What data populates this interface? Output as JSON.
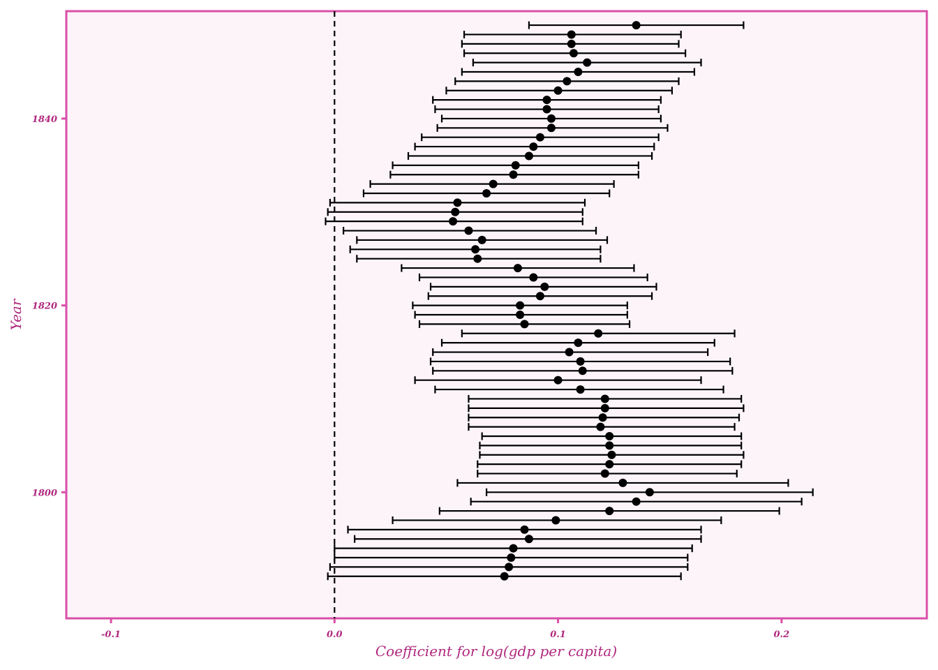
{
  "colors": {
    "panel_border": "#d94fa8",
    "panel_fill": "#fcf4f9",
    "axis_text": "#b0287e",
    "marks": "#000000"
  },
  "chart_data": {
    "type": "scatter",
    "subtype": "coefficient-plot-with-confidence-intervals",
    "xlabel": "Coefficient for log(gdp per capita)",
    "ylabel": "Year",
    "xlim": [
      -0.12,
      0.265
    ],
    "ylim": [
      1786.5,
      1851.5
    ],
    "x_ticks": [
      -0.1,
      0.0,
      0.1,
      0.2
    ],
    "x_tick_labels": [
      "-0.1",
      "0.0",
      "0.1",
      "0.2"
    ],
    "y_ticks": [
      1800,
      1820,
      1840
    ],
    "y_tick_labels": [
      "1800",
      "1820",
      "1840"
    ],
    "reference_line": {
      "x": 0,
      "style": "dashed"
    },
    "grid": false,
    "legend": "none",
    "points": [
      {
        "year": 1850,
        "estimate": 0.135,
        "lower": 0.087,
        "upper": 0.183
      },
      {
        "year": 1849,
        "estimate": 0.106,
        "lower": 0.058,
        "upper": 0.155
      },
      {
        "year": 1848,
        "estimate": 0.106,
        "lower": 0.057,
        "upper": 0.154
      },
      {
        "year": 1847,
        "estimate": 0.107,
        "lower": 0.058,
        "upper": 0.157
      },
      {
        "year": 1846,
        "estimate": 0.113,
        "lower": 0.062,
        "upper": 0.164
      },
      {
        "year": 1845,
        "estimate": 0.109,
        "lower": 0.057,
        "upper": 0.161
      },
      {
        "year": 1844,
        "estimate": 0.104,
        "lower": 0.054,
        "upper": 0.154
      },
      {
        "year": 1843,
        "estimate": 0.1,
        "lower": 0.05,
        "upper": 0.151
      },
      {
        "year": 1842,
        "estimate": 0.095,
        "lower": 0.044,
        "upper": 0.146
      },
      {
        "year": 1841,
        "estimate": 0.095,
        "lower": 0.045,
        "upper": 0.145
      },
      {
        "year": 1840,
        "estimate": 0.097,
        "lower": 0.048,
        "upper": 0.146
      },
      {
        "year": 1839,
        "estimate": 0.097,
        "lower": 0.046,
        "upper": 0.149
      },
      {
        "year": 1838,
        "estimate": 0.092,
        "lower": 0.039,
        "upper": 0.145
      },
      {
        "year": 1837,
        "estimate": 0.089,
        "lower": 0.036,
        "upper": 0.143
      },
      {
        "year": 1836,
        "estimate": 0.087,
        "lower": 0.033,
        "upper": 0.142
      },
      {
        "year": 1835,
        "estimate": 0.081,
        "lower": 0.026,
        "upper": 0.136
      },
      {
        "year": 1834,
        "estimate": 0.08,
        "lower": 0.025,
        "upper": 0.136
      },
      {
        "year": 1833,
        "estimate": 0.071,
        "lower": 0.016,
        "upper": 0.125
      },
      {
        "year": 1832,
        "estimate": 0.068,
        "lower": 0.013,
        "upper": 0.123
      },
      {
        "year": 1831,
        "estimate": 0.055,
        "lower": -0.002,
        "upper": 0.112
      },
      {
        "year": 1830,
        "estimate": 0.054,
        "lower": -0.003,
        "upper": 0.111
      },
      {
        "year": 1829,
        "estimate": 0.053,
        "lower": -0.004,
        "upper": 0.111
      },
      {
        "year": 1828,
        "estimate": 0.06,
        "lower": 0.004,
        "upper": 0.117
      },
      {
        "year": 1827,
        "estimate": 0.066,
        "lower": 0.01,
        "upper": 0.122
      },
      {
        "year": 1826,
        "estimate": 0.063,
        "lower": 0.007,
        "upper": 0.119
      },
      {
        "year": 1825,
        "estimate": 0.064,
        "lower": 0.01,
        "upper": 0.119
      },
      {
        "year": 1824,
        "estimate": 0.082,
        "lower": 0.03,
        "upper": 0.134
      },
      {
        "year": 1823,
        "estimate": 0.089,
        "lower": 0.038,
        "upper": 0.14
      },
      {
        "year": 1822,
        "estimate": 0.094,
        "lower": 0.043,
        "upper": 0.144
      },
      {
        "year": 1821,
        "estimate": 0.092,
        "lower": 0.042,
        "upper": 0.142
      },
      {
        "year": 1820,
        "estimate": 0.083,
        "lower": 0.035,
        "upper": 0.131
      },
      {
        "year": 1819,
        "estimate": 0.083,
        "lower": 0.036,
        "upper": 0.131
      },
      {
        "year": 1818,
        "estimate": 0.085,
        "lower": 0.038,
        "upper": 0.132
      },
      {
        "year": 1817,
        "estimate": 0.118,
        "lower": 0.057,
        "upper": 0.179
      },
      {
        "year": 1816,
        "estimate": 0.109,
        "lower": 0.048,
        "upper": 0.17
      },
      {
        "year": 1815,
        "estimate": 0.105,
        "lower": 0.044,
        "upper": 0.167
      },
      {
        "year": 1814,
        "estimate": 0.11,
        "lower": 0.043,
        "upper": 0.177
      },
      {
        "year": 1813,
        "estimate": 0.111,
        "lower": 0.044,
        "upper": 0.178
      },
      {
        "year": 1812,
        "estimate": 0.1,
        "lower": 0.036,
        "upper": 0.164
      },
      {
        "year": 1811,
        "estimate": 0.11,
        "lower": 0.045,
        "upper": 0.174
      },
      {
        "year": 1810,
        "estimate": 0.121,
        "lower": 0.06,
        "upper": 0.182
      },
      {
        "year": 1809,
        "estimate": 0.121,
        "lower": 0.06,
        "upper": 0.183
      },
      {
        "year": 1808,
        "estimate": 0.12,
        "lower": 0.06,
        "upper": 0.181
      },
      {
        "year": 1807,
        "estimate": 0.119,
        "lower": 0.06,
        "upper": 0.179
      },
      {
        "year": 1806,
        "estimate": 0.123,
        "lower": 0.066,
        "upper": 0.182
      },
      {
        "year": 1805,
        "estimate": 0.123,
        "lower": 0.065,
        "upper": 0.182
      },
      {
        "year": 1804,
        "estimate": 0.124,
        "lower": 0.065,
        "upper": 0.183
      },
      {
        "year": 1803,
        "estimate": 0.123,
        "lower": 0.064,
        "upper": 0.182
      },
      {
        "year": 1802,
        "estimate": 0.121,
        "lower": 0.064,
        "upper": 0.18
      },
      {
        "year": 1801,
        "estimate": 0.129,
        "lower": 0.055,
        "upper": 0.203
      },
      {
        "year": 1800,
        "estimate": 0.141,
        "lower": 0.068,
        "upper": 0.214
      },
      {
        "year": 1799,
        "estimate": 0.135,
        "lower": 0.061,
        "upper": 0.209
      },
      {
        "year": 1798,
        "estimate": 0.123,
        "lower": 0.047,
        "upper": 0.199
      },
      {
        "year": 1797,
        "estimate": 0.099,
        "lower": 0.026,
        "upper": 0.173
      },
      {
        "year": 1796,
        "estimate": 0.085,
        "lower": 0.006,
        "upper": 0.164
      },
      {
        "year": 1795,
        "estimate": 0.087,
        "lower": 0.009,
        "upper": 0.164
      },
      {
        "year": 1794,
        "estimate": 0.08,
        "lower": 0.0,
        "upper": 0.16
      },
      {
        "year": 1793,
        "estimate": 0.079,
        "lower": 0.0,
        "upper": 0.158
      },
      {
        "year": 1792,
        "estimate": 0.078,
        "lower": -0.002,
        "upper": 0.158
      },
      {
        "year": 1791,
        "estimate": 0.076,
        "lower": -0.003,
        "upper": 0.155
      }
    ]
  }
}
